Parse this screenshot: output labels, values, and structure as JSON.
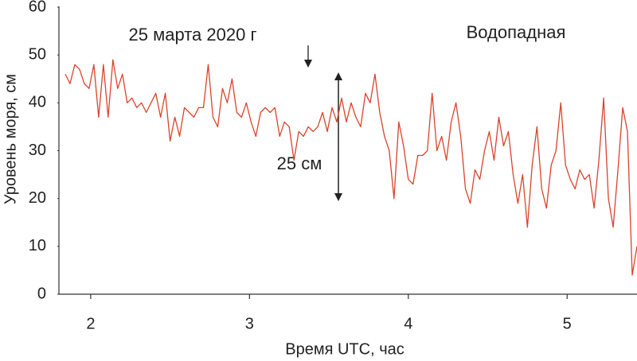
{
  "chart_data": {
    "type": "line",
    "annotations": [
      "25 марта 2020 г",
      "Водопадная",
      "25 см"
    ],
    "x_label": "Время UTC, час",
    "y_label": "Уровень моря, см",
    "xlim": [
      1.8,
      5.44
    ],
    "xticks": [
      2,
      3,
      4,
      5
    ],
    "ylim": [
      0,
      60
    ],
    "yticks": [
      0,
      10,
      20,
      30,
      40,
      50,
      60
    ],
    "x": [
      1.84,
      1.87,
      1.9,
      1.93,
      1.96,
      1.99,
      2.02,
      2.05,
      2.08,
      2.11,
      2.14,
      2.17,
      2.2,
      2.23,
      2.26,
      2.29,
      2.32,
      2.35,
      2.38,
      2.41,
      2.44,
      2.47,
      2.5,
      2.53,
      2.56,
      2.59,
      2.62,
      2.65,
      2.68,
      2.71,
      2.74,
      2.77,
      2.8,
      2.83,
      2.86,
      2.89,
      2.92,
      2.95,
      2.98,
      3.01,
      3.04,
      3.07,
      3.1,
      3.13,
      3.16,
      3.19,
      3.22,
      3.25,
      3.28,
      3.31,
      3.34,
      3.37,
      3.4,
      3.43,
      3.46,
      3.49,
      3.52,
      3.55,
      3.58,
      3.61,
      3.64,
      3.67,
      3.7,
      3.73,
      3.76,
      3.79,
      3.82,
      3.85,
      3.88,
      3.91,
      3.94,
      3.97,
      4.0,
      4.03,
      4.06,
      4.09,
      4.12,
      4.15,
      4.18,
      4.21,
      4.24,
      4.27,
      4.3,
      4.33,
      4.36,
      4.39,
      4.42,
      4.45,
      4.48,
      4.51,
      4.54,
      4.57,
      4.6,
      4.63,
      4.66,
      4.69,
      4.72,
      4.75,
      4.78,
      4.81,
      4.84,
      4.87,
      4.9,
      4.93,
      4.96,
      4.99,
      5.02,
      5.05,
      5.08,
      5.11,
      5.14,
      5.17,
      5.2,
      5.23,
      5.26,
      5.29,
      5.32,
      5.35,
      5.38,
      5.41,
      5.44
    ],
    "series": [
      {
        "color": "#d9432b",
        "values": [
          46,
          44,
          48,
          47,
          44,
          43,
          48,
          37,
          48,
          37,
          49,
          43,
          46,
          40,
          41,
          39,
          40,
          38,
          40,
          42,
          37,
          42,
          32,
          37,
          33,
          39,
          38,
          37,
          39,
          39,
          48,
          37,
          35,
          43,
          40,
          45,
          38,
          37,
          40,
          36,
          33,
          38,
          39,
          38,
          39,
          33,
          36,
          35,
          28,
          34,
          33,
          35,
          34,
          35,
          38,
          34,
          39,
          36,
          41,
          36,
          40,
          37,
          35,
          42,
          40,
          46,
          38,
          33,
          30,
          20,
          36,
          31,
          24,
          23,
          29,
          29,
          30,
          42,
          30,
          33,
          28,
          36,
          40,
          33,
          22,
          19,
          26,
          24,
          30,
          34,
          28,
          37,
          31,
          34,
          25,
          19,
          25,
          14,
          27,
          35,
          22,
          18,
          27,
          30,
          40,
          27,
          24,
          22,
          26,
          24,
          25,
          18,
          28,
          41,
          20,
          14,
          26,
          39,
          34,
          4,
          10
        ]
      }
    ]
  }
}
